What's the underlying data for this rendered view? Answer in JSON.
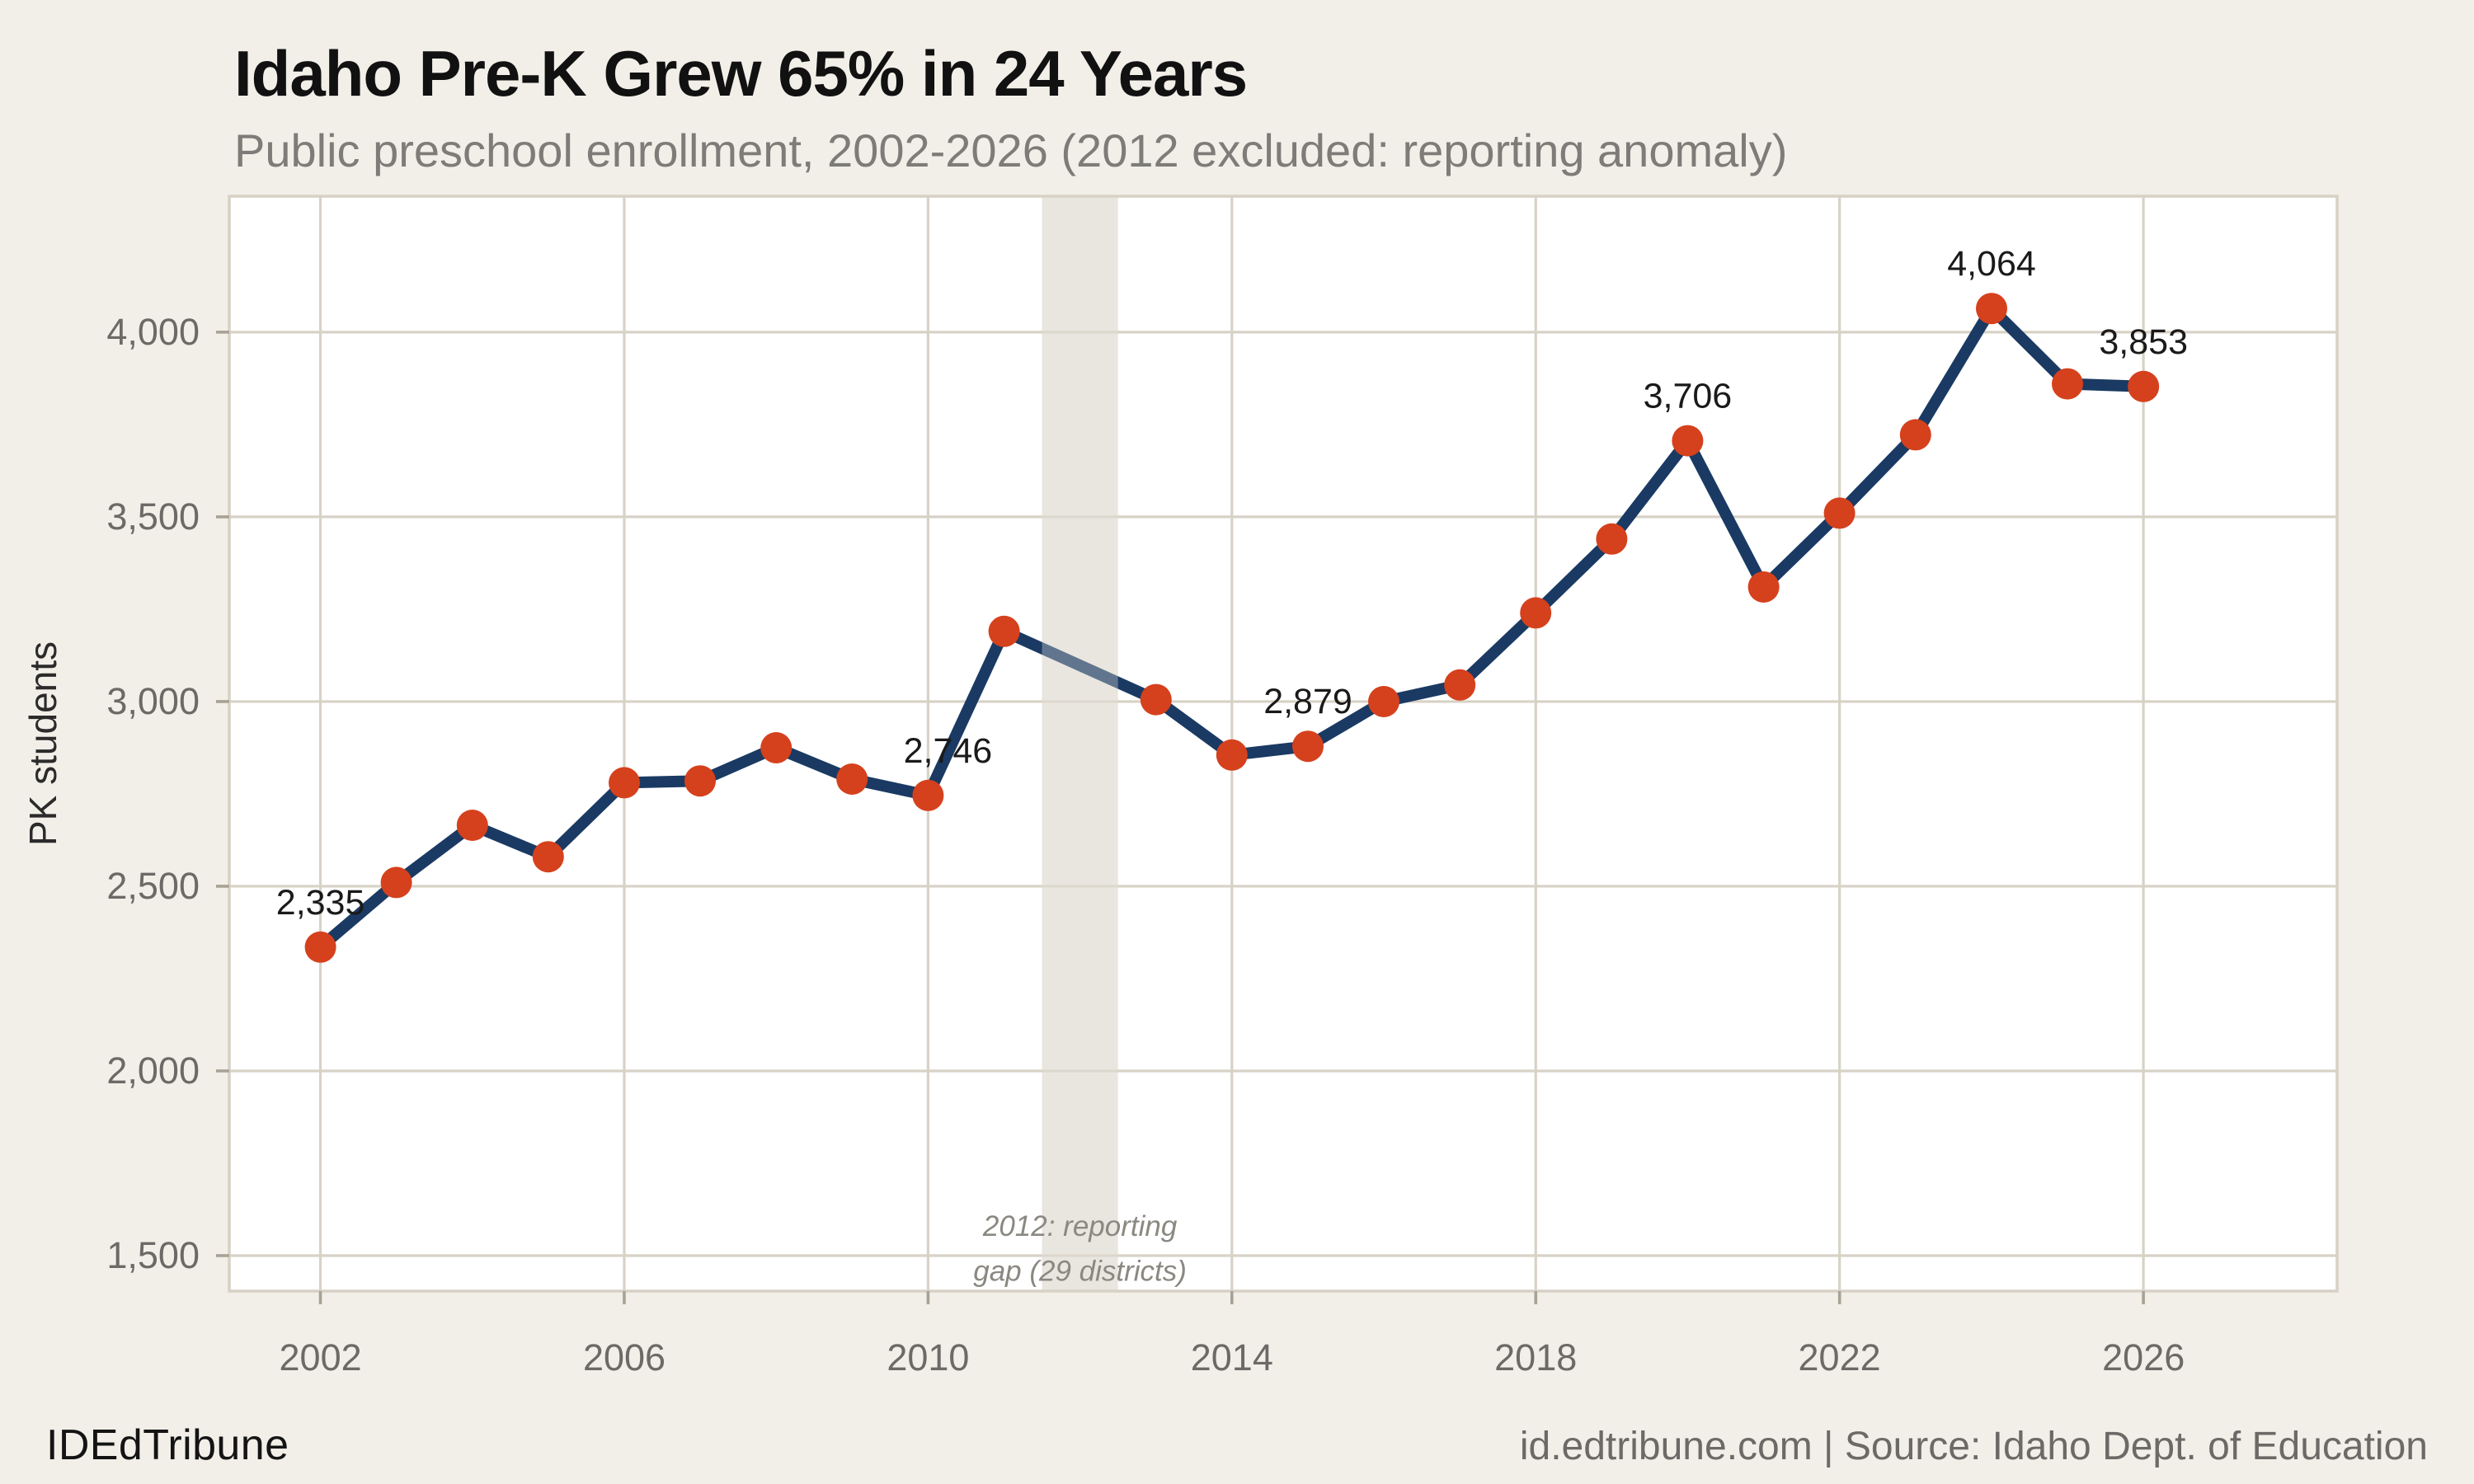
{
  "title": "Idaho Pre-K Grew 65% in 24 Years",
  "subtitle": "Public preschool enrollment, 2002-2026 (2012 excluded: reporting anomaly)",
  "footer": {
    "brand": "IDEdTribune",
    "source": "id.edtribune.com | Source: Idaho Dept. of Education"
  },
  "chart_data": {
    "type": "line",
    "title": "Idaho Pre-K Grew 65% in 24 Years",
    "subtitle": "Public preschool enrollment, 2002-2026 (2012 excluded: reporting anomaly)",
    "xlabel": "",
    "ylabel": "PK students",
    "grid": true,
    "legend": false,
    "x_domain": [
      2000.8,
      2028.55
    ],
    "y_domain": [
      1404,
      4368
    ],
    "x_ticks": [
      2002,
      2006,
      2010,
      2014,
      2018,
      2022,
      2026
    ],
    "y_ticks": [
      {
        "v": 1500,
        "label": "1,500"
      },
      {
        "v": 2000,
        "label": "2,000"
      },
      {
        "v": 2500,
        "label": "2,500"
      },
      {
        "v": 3000,
        "label": "3,000"
      },
      {
        "v": 3500,
        "label": "3,500"
      },
      {
        "v": 4000,
        "label": "4,000"
      }
    ],
    "series": [
      {
        "name": "Public preschool enrollment",
        "points": [
          {
            "x": 2002,
            "y": 2335,
            "label": "2,335"
          },
          {
            "x": 2003,
            "y": 2510
          },
          {
            "x": 2004,
            "y": 2665
          },
          {
            "x": 2005,
            "y": 2580
          },
          {
            "x": 2006,
            "y": 2780
          },
          {
            "x": 2007,
            "y": 2785
          },
          {
            "x": 2008,
            "y": 2875
          },
          {
            "x": 2009,
            "y": 2790
          },
          {
            "x": 2010,
            "y": 2746,
            "label": "2,746",
            "label_dx": 12
          },
          {
            "x": 2011,
            "y": 3190
          },
          {
            "x": 2013,
            "y": 3005
          },
          {
            "x": 2014,
            "y": 2855
          },
          {
            "x": 2015,
            "y": 2879,
            "label": "2,879"
          },
          {
            "x": 2016,
            "y": 3000
          },
          {
            "x": 2017,
            "y": 3045
          },
          {
            "x": 2018,
            "y": 3240
          },
          {
            "x": 2019,
            "y": 3440
          },
          {
            "x": 2020,
            "y": 3706,
            "label": "3,706"
          },
          {
            "x": 2021,
            "y": 3310
          },
          {
            "x": 2022,
            "y": 3510
          },
          {
            "x": 2023,
            "y": 3722
          },
          {
            "x": 2024,
            "y": 4064,
            "label": "4,064"
          },
          {
            "x": 2025,
            "y": 3860
          },
          {
            "x": 2026,
            "y": 3853,
            "label": "3,853"
          }
        ]
      }
    ],
    "gap_band": {
      "x0": 2011.5,
      "x1": 2012.5,
      "note_x": 2012,
      "note_y": [
        1553,
        1432
      ],
      "note": [
        "2012: reporting",
        "gap (29 districts)"
      ]
    },
    "colors": {
      "background": "#f2efe8",
      "panel": "#ffffff",
      "grid": "#d8d2c6",
      "band": "#e9e6df",
      "line": "#1a3a63",
      "point": "#d5411d",
      "tick": "#a8a296",
      "axis_text": "#6b6a66",
      "label_text": "#1a1a1a",
      "note_text": "#8a8880",
      "axis_title_text": "#2b2b2b"
    }
  }
}
